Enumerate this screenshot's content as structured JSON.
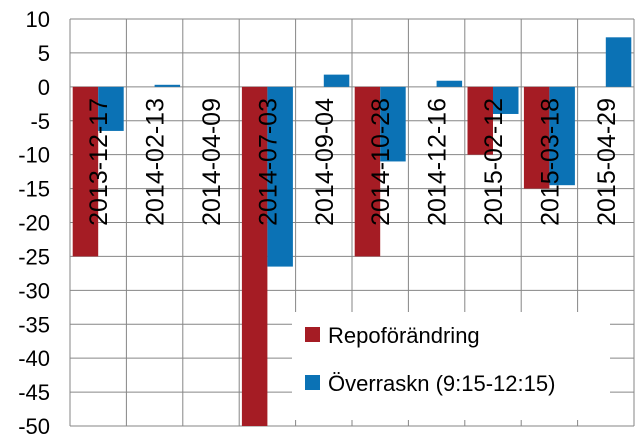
{
  "chart_data": {
    "type": "bar",
    "categories": [
      "2013-12-17",
      "2014-02-13",
      "2014-04-09",
      "2014-07-03",
      "2014-09-04",
      "2014-10-28",
      "2014-12-16",
      "2015-02-12",
      "2015-03-18",
      "2015-04-29"
    ],
    "series": [
      {
        "name": "Repoförändring",
        "color": "#a51c24",
        "values": [
          -25,
          0,
          0,
          -50,
          0,
          -25,
          0,
          -10,
          -15,
          0
        ]
      },
      {
        "name": "Överraskn (9:15-12:15)",
        "color": "#0b72b5",
        "values": [
          -6.5,
          0.3,
          0,
          -26.5,
          1.8,
          -11,
          0.9,
          -4,
          -14.5,
          7.3
        ]
      }
    ],
    "yticks": [
      "10",
      "5",
      "0",
      "-5",
      "-10",
      "-15",
      "-20",
      "-25",
      "-30",
      "-35",
      "-40",
      "-45",
      "-50"
    ],
    "ylim": [
      -50,
      10
    ],
    "ystep": 5,
    "grid": true,
    "legend_position": "bottom-right",
    "title": "",
    "xlabel": "",
    "ylabel": ""
  }
}
